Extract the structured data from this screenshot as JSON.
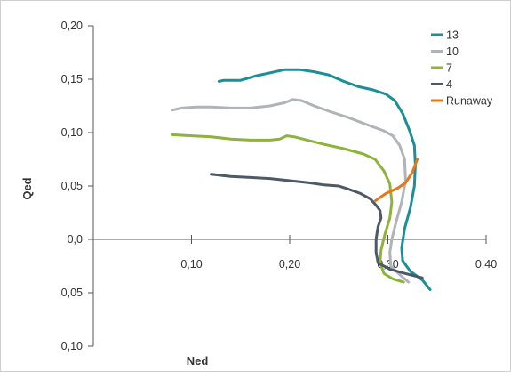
{
  "chart_data": {
    "type": "line",
    "xlabel": "Ned",
    "ylabel": "Qed",
    "xlim": [
      0,
      0.4
    ],
    "ylim": [
      -0.1,
      0.2
    ],
    "x_ticks": [
      {
        "value": 0.1,
        "label": "0,10"
      },
      {
        "value": 0.2,
        "label": "0,20"
      },
      {
        "value": 0.3,
        "label": "0,30"
      },
      {
        "value": 0.4,
        "label": "0,40"
      }
    ],
    "y_ticks": [
      {
        "value": 0.2,
        "label": "0,20"
      },
      {
        "value": 0.15,
        "label": "0,15"
      },
      {
        "value": 0.1,
        "label": "0,10"
      },
      {
        "value": 0.05,
        "label": "0,05"
      },
      {
        "value": 0.0,
        "label": "0,0"
      },
      {
        "value": -0.05,
        "label": "0,05"
      },
      {
        "value": -0.1,
        "label": "0,10"
      }
    ],
    "grid": false,
    "legend_position": "top-right",
    "series": [
      {
        "name": "13",
        "color": "#1a8f96",
        "points": [
          [
            0.128,
            0.148
          ],
          [
            0.133,
            0.149
          ],
          [
            0.15,
            0.149
          ],
          [
            0.165,
            0.153
          ],
          [
            0.18,
            0.156
          ],
          [
            0.195,
            0.159
          ],
          [
            0.21,
            0.159
          ],
          [
            0.225,
            0.157
          ],
          [
            0.24,
            0.154
          ],
          [
            0.255,
            0.148
          ],
          [
            0.27,
            0.143
          ],
          [
            0.285,
            0.14
          ],
          [
            0.298,
            0.136
          ],
          [
            0.307,
            0.13
          ],
          [
            0.315,
            0.118
          ],
          [
            0.322,
            0.102
          ],
          [
            0.327,
            0.088
          ],
          [
            0.328,
            0.07
          ],
          [
            0.327,
            0.05
          ],
          [
            0.323,
            0.03
          ],
          [
            0.317,
            0.01
          ],
          [
            0.314,
            -0.008
          ],
          [
            0.315,
            -0.02
          ],
          [
            0.323,
            -0.03
          ],
          [
            0.335,
            -0.038
          ],
          [
            0.343,
            -0.047
          ]
        ]
      },
      {
        "name": "10",
        "color": "#b0b3b7",
        "points": [
          [
            0.08,
            0.121
          ],
          [
            0.09,
            0.123
          ],
          [
            0.105,
            0.124
          ],
          [
            0.12,
            0.124
          ],
          [
            0.14,
            0.123
          ],
          [
            0.16,
            0.123
          ],
          [
            0.18,
            0.125
          ],
          [
            0.195,
            0.128
          ],
          [
            0.203,
            0.131
          ],
          [
            0.212,
            0.13
          ],
          [
            0.225,
            0.125
          ],
          [
            0.24,
            0.12
          ],
          [
            0.26,
            0.114
          ],
          [
            0.28,
            0.107
          ],
          [
            0.295,
            0.102
          ],
          [
            0.305,
            0.097
          ],
          [
            0.312,
            0.088
          ],
          [
            0.317,
            0.075
          ],
          [
            0.318,
            0.055
          ],
          [
            0.314,
            0.035
          ],
          [
            0.308,
            0.015
          ],
          [
            0.304,
            0.0
          ],
          [
            0.302,
            -0.012
          ],
          [
            0.303,
            -0.025
          ],
          [
            0.312,
            -0.033
          ],
          [
            0.321,
            -0.04
          ]
        ]
      },
      {
        "name": "7",
        "color": "#8db33a",
        "points": [
          [
            0.08,
            0.098
          ],
          [
            0.1,
            0.097
          ],
          [
            0.12,
            0.096
          ],
          [
            0.14,
            0.094
          ],
          [
            0.16,
            0.093
          ],
          [
            0.18,
            0.093
          ],
          [
            0.19,
            0.094
          ],
          [
            0.197,
            0.097
          ],
          [
            0.205,
            0.096
          ],
          [
            0.218,
            0.093
          ],
          [
            0.235,
            0.089
          ],
          [
            0.255,
            0.085
          ],
          [
            0.275,
            0.08
          ],
          [
            0.287,
            0.075
          ],
          [
            0.296,
            0.064
          ],
          [
            0.302,
            0.052
          ],
          [
            0.304,
            0.035
          ],
          [
            0.302,
            0.02
          ],
          [
            0.297,
            0.005
          ],
          [
            0.293,
            -0.01
          ],
          [
            0.292,
            -0.022
          ],
          [
            0.296,
            -0.032
          ],
          [
            0.305,
            -0.037
          ],
          [
            0.316,
            -0.04
          ]
        ]
      },
      {
        "name": "4",
        "color": "#4d5966",
        "points": [
          [
            0.12,
            0.061
          ],
          [
            0.14,
            0.059
          ],
          [
            0.16,
            0.058
          ],
          [
            0.18,
            0.057
          ],
          [
            0.2,
            0.055
          ],
          [
            0.22,
            0.053
          ],
          [
            0.235,
            0.051
          ],
          [
            0.25,
            0.05
          ],
          [
            0.26,
            0.047
          ],
          [
            0.272,
            0.043
          ],
          [
            0.282,
            0.038
          ],
          [
            0.288,
            0.032
          ],
          [
            0.292,
            0.027
          ],
          [
            0.293,
            0.02
          ],
          [
            0.29,
            0.012
          ],
          [
            0.288,
            0.0
          ],
          [
            0.288,
            -0.012
          ],
          [
            0.29,
            -0.022
          ],
          [
            0.302,
            -0.028
          ],
          [
            0.318,
            -0.032
          ],
          [
            0.335,
            -0.036
          ]
        ]
      },
      {
        "name": "Runaway",
        "color": "#e8761d",
        "points": [
          [
            0.287,
            0.036
          ],
          [
            0.298,
            0.043
          ],
          [
            0.31,
            0.048
          ],
          [
            0.318,
            0.053
          ],
          [
            0.325,
            0.063
          ],
          [
            0.33,
            0.075
          ]
        ]
      }
    ]
  }
}
